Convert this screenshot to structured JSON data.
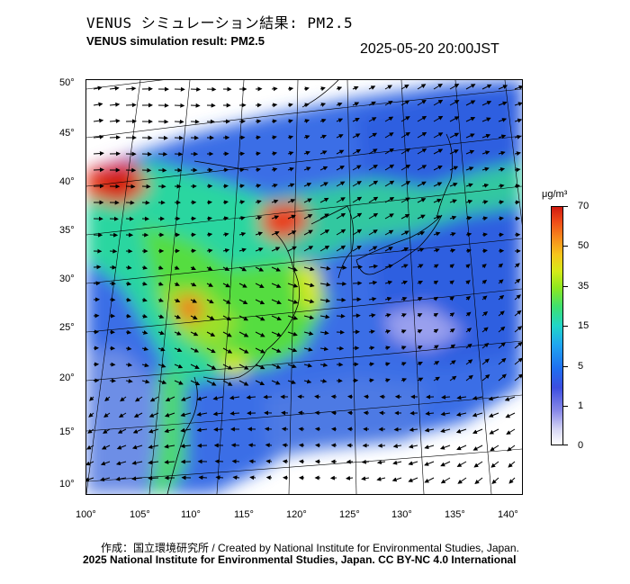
{
  "header": {
    "title_jp": "VENUS シミュレーション結果: PM2.5",
    "title_en": "VENUS simulation result: PM2.5",
    "datetime": "2025-05-20 20:00JST"
  },
  "map": {
    "lat_labels": [
      "50°",
      "45°",
      "40°",
      "35°",
      "30°",
      "25°",
      "20°",
      "15°",
      "10°"
    ],
    "lon_labels": [
      "100°",
      "105°",
      "110°",
      "115°",
      "120°",
      "125°",
      "130°",
      "135°",
      "140°"
    ]
  },
  "colorbar": {
    "unit": "μg/m³",
    "ticks": [
      "70",
      "50",
      "35",
      "15",
      "5",
      "1",
      "0"
    ],
    "colors": [
      "#ffffff",
      "#8a8ae8",
      "#1f6ff0",
      "#21d6c8",
      "#3ee070",
      "#d6ea18",
      "#f78a1c",
      "#d01b10"
    ]
  },
  "footer": {
    "credit": "作成：国立環境研究所 / Created by National Institute for Environmental Studies, Japan.",
    "license": "2025 National Institute for Environmental Studies, Japan. CC BY-NC 4.0 International"
  }
}
